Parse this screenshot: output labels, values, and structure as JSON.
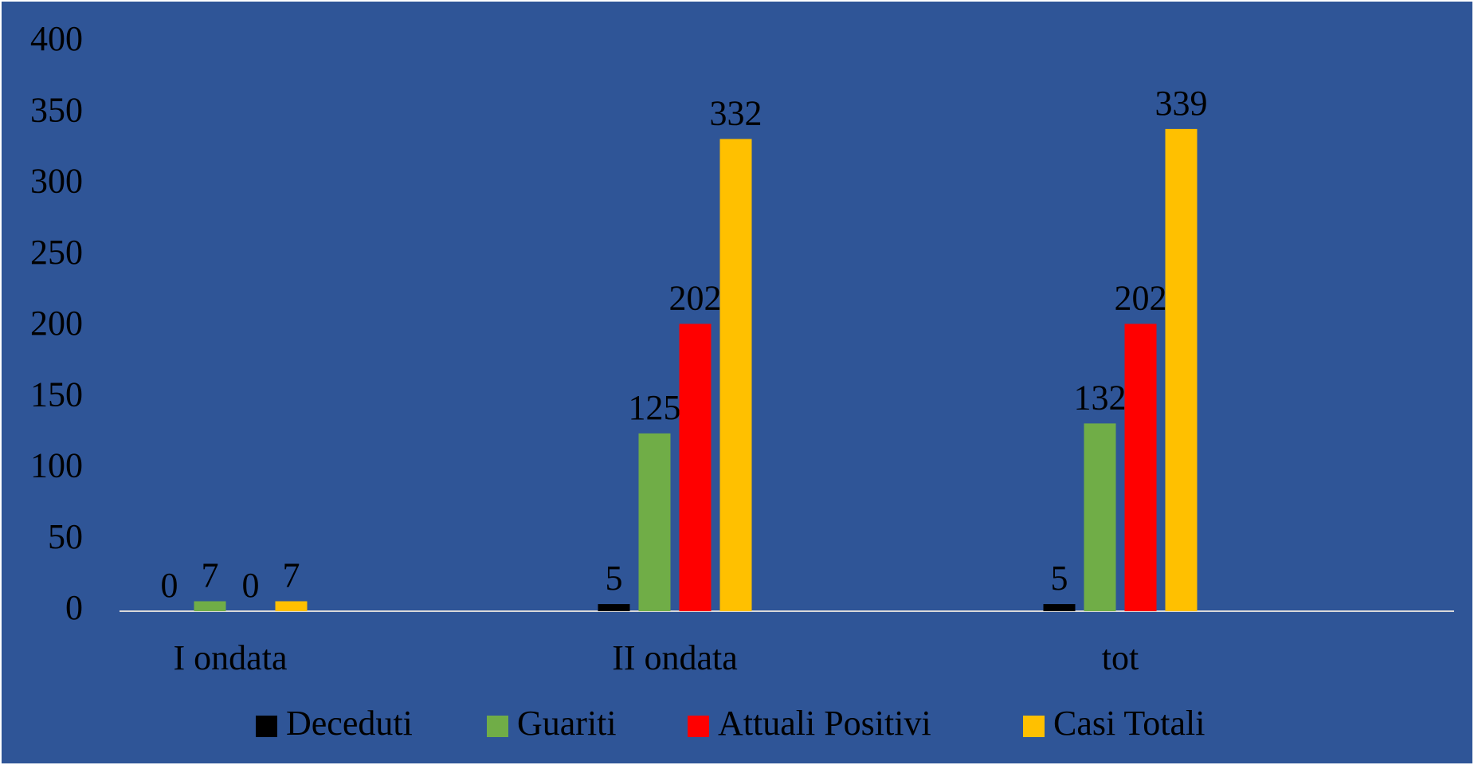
{
  "chart_data": {
    "type": "bar",
    "categories": [
      "I ondata",
      "II ondata",
      "tot"
    ],
    "series": [
      {
        "name": "Deceduti",
        "color": "#000000",
        "values": [
          0,
          5,
          5
        ]
      },
      {
        "name": "Guariti",
        "color": "#70AD47",
        "values": [
          7,
          125,
          132
        ]
      },
      {
        "name": "Attuali Positivi",
        "color": "#FF0000",
        "values": [
          0,
          202,
          202
        ]
      },
      {
        "name": "Casi Totali",
        "color": "#FFC000",
        "values": [
          7,
          332,
          339
        ]
      }
    ],
    "ylim": [
      0,
      400
    ],
    "yticks": [
      0,
      50,
      100,
      150,
      200,
      250,
      300,
      350,
      400
    ],
    "grid": false,
    "legend": "bottom"
  }
}
